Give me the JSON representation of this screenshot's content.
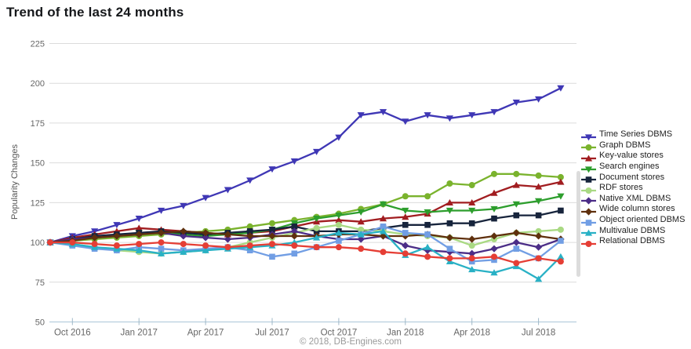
{
  "title": "Trend of the last 24 months",
  "footer": {
    "copyright": "© 2018, DB-Engines.com"
  },
  "chart_data": {
    "type": "line",
    "title": "Trend of the last 24 months",
    "ylabel": "Popularity Changes",
    "ylim": [
      50,
      225
    ],
    "y_ticks": [
      225,
      200,
      175,
      150,
      125,
      100,
      75,
      50
    ],
    "x_tick_labels": [
      "Oct 2016",
      "Jan 2017",
      "Apr 2017",
      "Jul 2017",
      "Oct 2017",
      "Jan 2018",
      "Apr 2018",
      "Jul 2018"
    ],
    "x_tick_indices": [
      1,
      4,
      7,
      10,
      13,
      16,
      19,
      22
    ],
    "n_points": 24,
    "grid": true,
    "legend_position": "right",
    "series": [
      {
        "name": "Time Series DBMS",
        "color": "#3f37b5",
        "marker": "triangle-down",
        "values": [
          100,
          104,
          107,
          111,
          115,
          120,
          123,
          128,
          133,
          139,
          146,
          151,
          157,
          166,
          180,
          182,
          176,
          180,
          178,
          180,
          182,
          188,
          190,
          197
        ]
      },
      {
        "name": "Graph DBMS",
        "color": "#7ab32d",
        "marker": "circle",
        "values": [
          100,
          101,
          102,
          103,
          104,
          105,
          106,
          107,
          108,
          110,
          112,
          114,
          116,
          118,
          121,
          124,
          129,
          129,
          137,
          136,
          143,
          143,
          142,
          141
        ]
      },
      {
        "name": "Key-value stores",
        "color": "#a11d20",
        "marker": "triangle-up",
        "values": [
          100,
          103,
          105,
          107,
          109,
          108,
          107,
          106,
          105,
          106,
          107,
          110,
          113,
          114,
          113,
          115,
          116,
          118,
          125,
          125,
          131,
          136,
          135,
          138
        ]
      },
      {
        "name": "Search engines",
        "color": "#2d9e2d",
        "marker": "triangle-down",
        "values": [
          100,
          102,
          103,
          104,
          106,
          106,
          105,
          104,
          105,
          106,
          108,
          112,
          115,
          117,
          119,
          124,
          120,
          119,
          120,
          120,
          121,
          124,
          126,
          129
        ]
      },
      {
        "name": "Document stores",
        "color": "#17243c",
        "marker": "square",
        "values": [
          100,
          102,
          104,
          105,
          106,
          107,
          106,
          105,
          106,
          107,
          108,
          110,
          107,
          107,
          107,
          109,
          111,
          111,
          112,
          112,
          115,
          117,
          117,
          120
        ]
      },
      {
        "name": "RDF stores",
        "color": "#a9d983",
        "marker": "circle",
        "values": [
          100,
          99,
          97,
          95,
          94,
          93,
          94,
          95,
          97,
          100,
          103,
          106,
          109,
          111,
          108,
          107,
          105,
          104,
          103,
          98,
          102,
          106,
          107,
          108
        ]
      },
      {
        "name": "Native XML DBMS",
        "color": "#4b2d87",
        "marker": "diamond",
        "values": [
          100,
          102,
          103,
          104,
          105,
          106,
          104,
          103,
          102,
          103,
          105,
          107,
          104,
          102,
          102,
          104,
          98,
          95,
          94,
          93,
          96,
          100,
          97,
          102
        ]
      },
      {
        "name": "Wide column stores",
        "color": "#5f300d",
        "marker": "diamond",
        "values": [
          100,
          101,
          103,
          104,
          105,
          106,
          107,
          106,
          105,
          104,
          104,
          104,
          104,
          105,
          105,
          104,
          104,
          105,
          103,
          102,
          104,
          106,
          104,
          102
        ]
      },
      {
        "name": "Object oriented DBMS",
        "color": "#719ee4",
        "marker": "square",
        "values": [
          100,
          98,
          96,
          95,
          97,
          96,
          95,
          96,
          97,
          95,
          91,
          93,
          97,
          101,
          105,
          110,
          106,
          105,
          96,
          88,
          89,
          96,
          90,
          101
        ]
      },
      {
        "name": "Multivalue DBMS",
        "color": "#29b1c5",
        "marker": "triangle-up",
        "values": [
          100,
          99,
          97,
          96,
          95,
          93,
          94,
          95,
          96,
          97,
          98,
          100,
          103,
          106,
          105,
          107,
          92,
          97,
          88,
          83,
          81,
          85,
          77,
          91
        ]
      },
      {
        "name": "Relational DBMS",
        "color": "#e53e35",
        "marker": "circle",
        "values": [
          100,
          100,
          99,
          98,
          99,
          100,
          99,
          98,
          97,
          98,
          99,
          98,
          97,
          97,
          96,
          94,
          93,
          91,
          90,
          90,
          91,
          87,
          90,
          88
        ]
      }
    ]
  },
  "style": {
    "grid_color": "#dcdcdc",
    "axis_line_color": "#b6cedd",
    "tick_color": "#9fb8c8",
    "tick_label_color": "#666666"
  }
}
